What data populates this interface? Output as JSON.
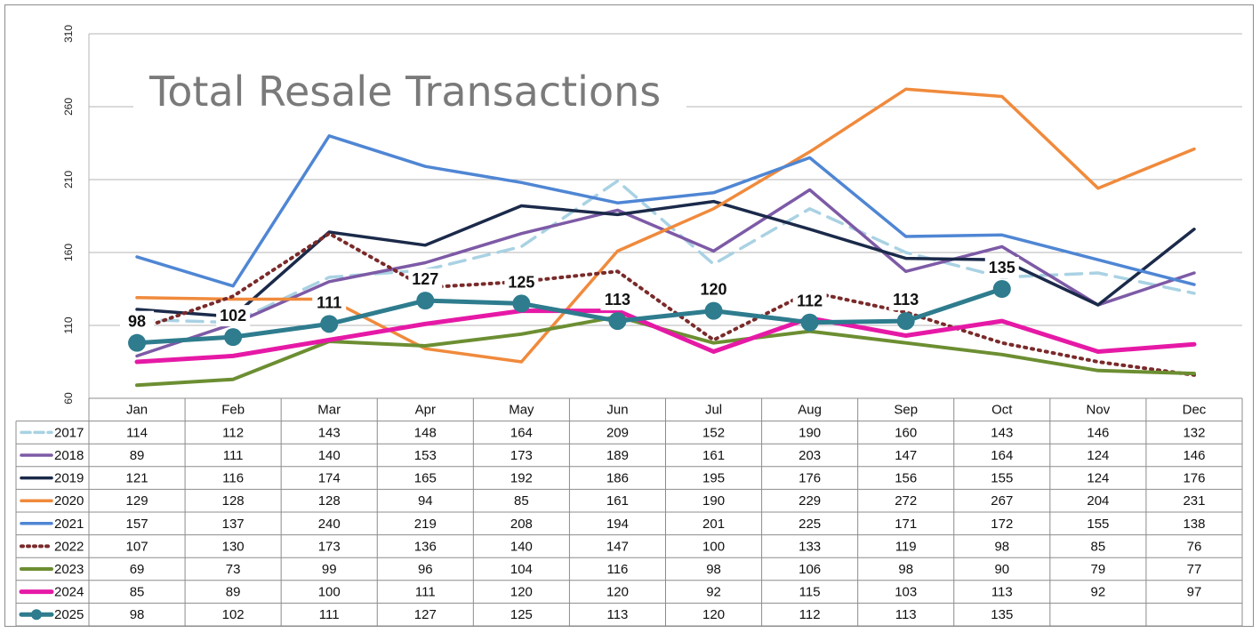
{
  "chart_data": {
    "type": "line",
    "title": "Total Resale Transactions",
    "categories": [
      "Jan",
      "Feb",
      "Mar",
      "Apr",
      "May",
      "Jun",
      "Jul",
      "Aug",
      "Sep",
      "Oct",
      "Nov",
      "Dec"
    ],
    "y_ticks": [
      60,
      110,
      160,
      210,
      260,
      310
    ],
    "ylim": [
      60,
      310
    ],
    "grid": "horizontal",
    "legend": "data-table",
    "series": [
      {
        "name": "2017",
        "color": "#a9d2e3",
        "dash": "dashed",
        "width": 3.5,
        "values": [
          114,
          112,
          143,
          148,
          164,
          209,
          152,
          190,
          160,
          143,
          146,
          132
        ]
      },
      {
        "name": "2018",
        "color": "#7d5aa6",
        "dash": "solid",
        "width": 3.5,
        "values": [
          89,
          111,
          140,
          153,
          173,
          189,
          161,
          203,
          147,
          164,
          124,
          146
        ]
      },
      {
        "name": "2019",
        "color": "#1b2a4a",
        "dash": "solid",
        "width": 3.5,
        "values": [
          121,
          116,
          174,
          165,
          192,
          186,
          195,
          176,
          156,
          155,
          124,
          176
        ]
      },
      {
        "name": "2020",
        "color": "#f08a3c",
        "dash": "solid",
        "width": 3.5,
        "values": [
          129,
          128,
          128,
          94,
          85,
          161,
          190,
          229,
          272,
          267,
          204,
          231
        ]
      },
      {
        "name": "2021",
        "color": "#4f86d4",
        "dash": "solid",
        "width": 3.5,
        "values": [
          157,
          137,
          240,
          219,
          208,
          194,
          201,
          225,
          171,
          172,
          155,
          138
        ]
      },
      {
        "name": "2022",
        "color": "#7a2a2a",
        "dash": "dotted",
        "width": 4,
        "values": [
          107,
          130,
          173,
          136,
          140,
          147,
          100,
          133,
          119,
          98,
          85,
          76
        ]
      },
      {
        "name": "2023",
        "color": "#6c8e32",
        "dash": "solid",
        "width": 4,
        "values": [
          69,
          73,
          99,
          96,
          104,
          116,
          98,
          106,
          98,
          90,
          79,
          77
        ]
      },
      {
        "name": "2024",
        "color": "#e619a6",
        "dash": "solid",
        "width": 5,
        "values": [
          85,
          89,
          100,
          111,
          120,
          120,
          92,
          115,
          103,
          113,
          92,
          97
        ]
      },
      {
        "name": "2025",
        "color": "#2e7c8e",
        "dash": "solid",
        "width": 5,
        "markers": true,
        "data_labels": true,
        "values": [
          98,
          102,
          111,
          127,
          125,
          113,
          120,
          112,
          113,
          135,
          null,
          null
        ]
      }
    ]
  }
}
